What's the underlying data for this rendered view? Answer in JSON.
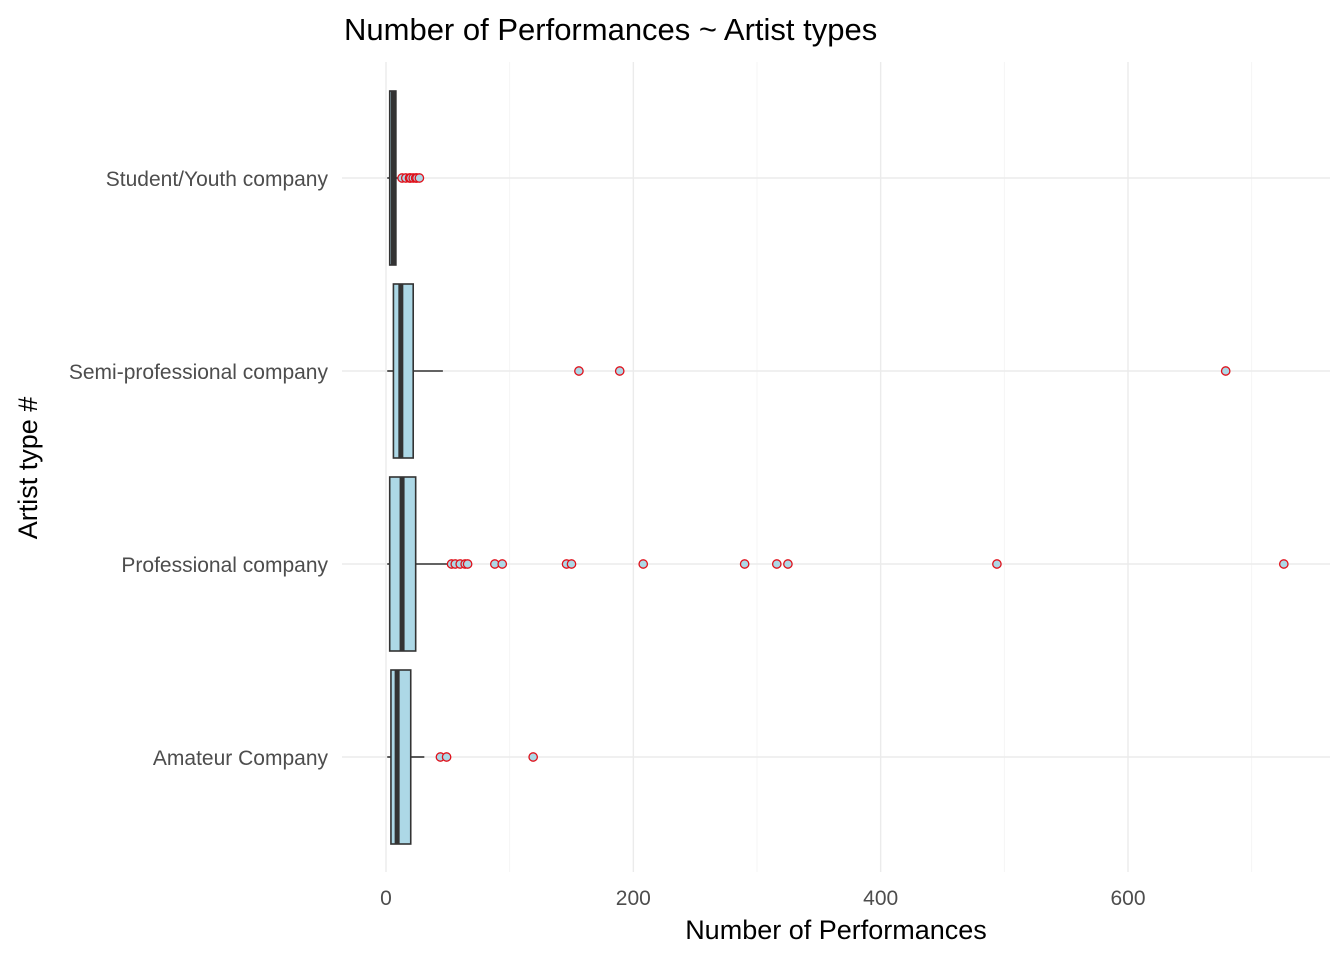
{
  "chart_data": {
    "type": "boxplot",
    "orientation": "horizontal",
    "title": "Number of Performances ~ Artist types",
    "xlabel": "Number of Performances",
    "ylabel": "Artist type #",
    "xlim": [
      0,
      760
    ],
    "x_ticks": [
      0,
      200,
      400,
      600
    ],
    "x_tick_labels": [
      "0",
      "200",
      "400",
      "600"
    ],
    "grid": true,
    "legend": "none",
    "colors": {
      "box_fill": "#add8e6",
      "box_line": "#333333",
      "outlier_stroke": "#e0101a"
    },
    "categories": [
      "Amateur Company",
      "Professional company",
      "Semi-professional company",
      "Student/Youth company"
    ],
    "boxes": [
      {
        "name": "Amateur Company",
        "min": 1,
        "q1": 4,
        "median": 9,
        "q3": 20,
        "max": 31,
        "outliers": [
          44,
          49,
          119
        ]
      },
      {
        "name": "Professional company",
        "min": 1,
        "q1": 3,
        "median": 13,
        "q3": 24,
        "max": 50,
        "outliers": [
          53,
          56,
          60,
          64,
          66,
          88,
          94,
          146,
          150,
          208,
          290,
          316,
          325,
          494,
          726
        ]
      },
      {
        "name": "Semi-professional company",
        "min": 1,
        "q1": 6,
        "median": 12,
        "q3": 22,
        "max": 46,
        "outliers": [
          156,
          189,
          679
        ]
      },
      {
        "name": "Student/Youth company",
        "min": 1,
        "q1": 3,
        "median": 6,
        "q3": 8,
        "max": 11,
        "outliers": [
          13,
          16,
          19,
          20,
          22,
          24,
          25,
          27
        ]
      }
    ]
  }
}
